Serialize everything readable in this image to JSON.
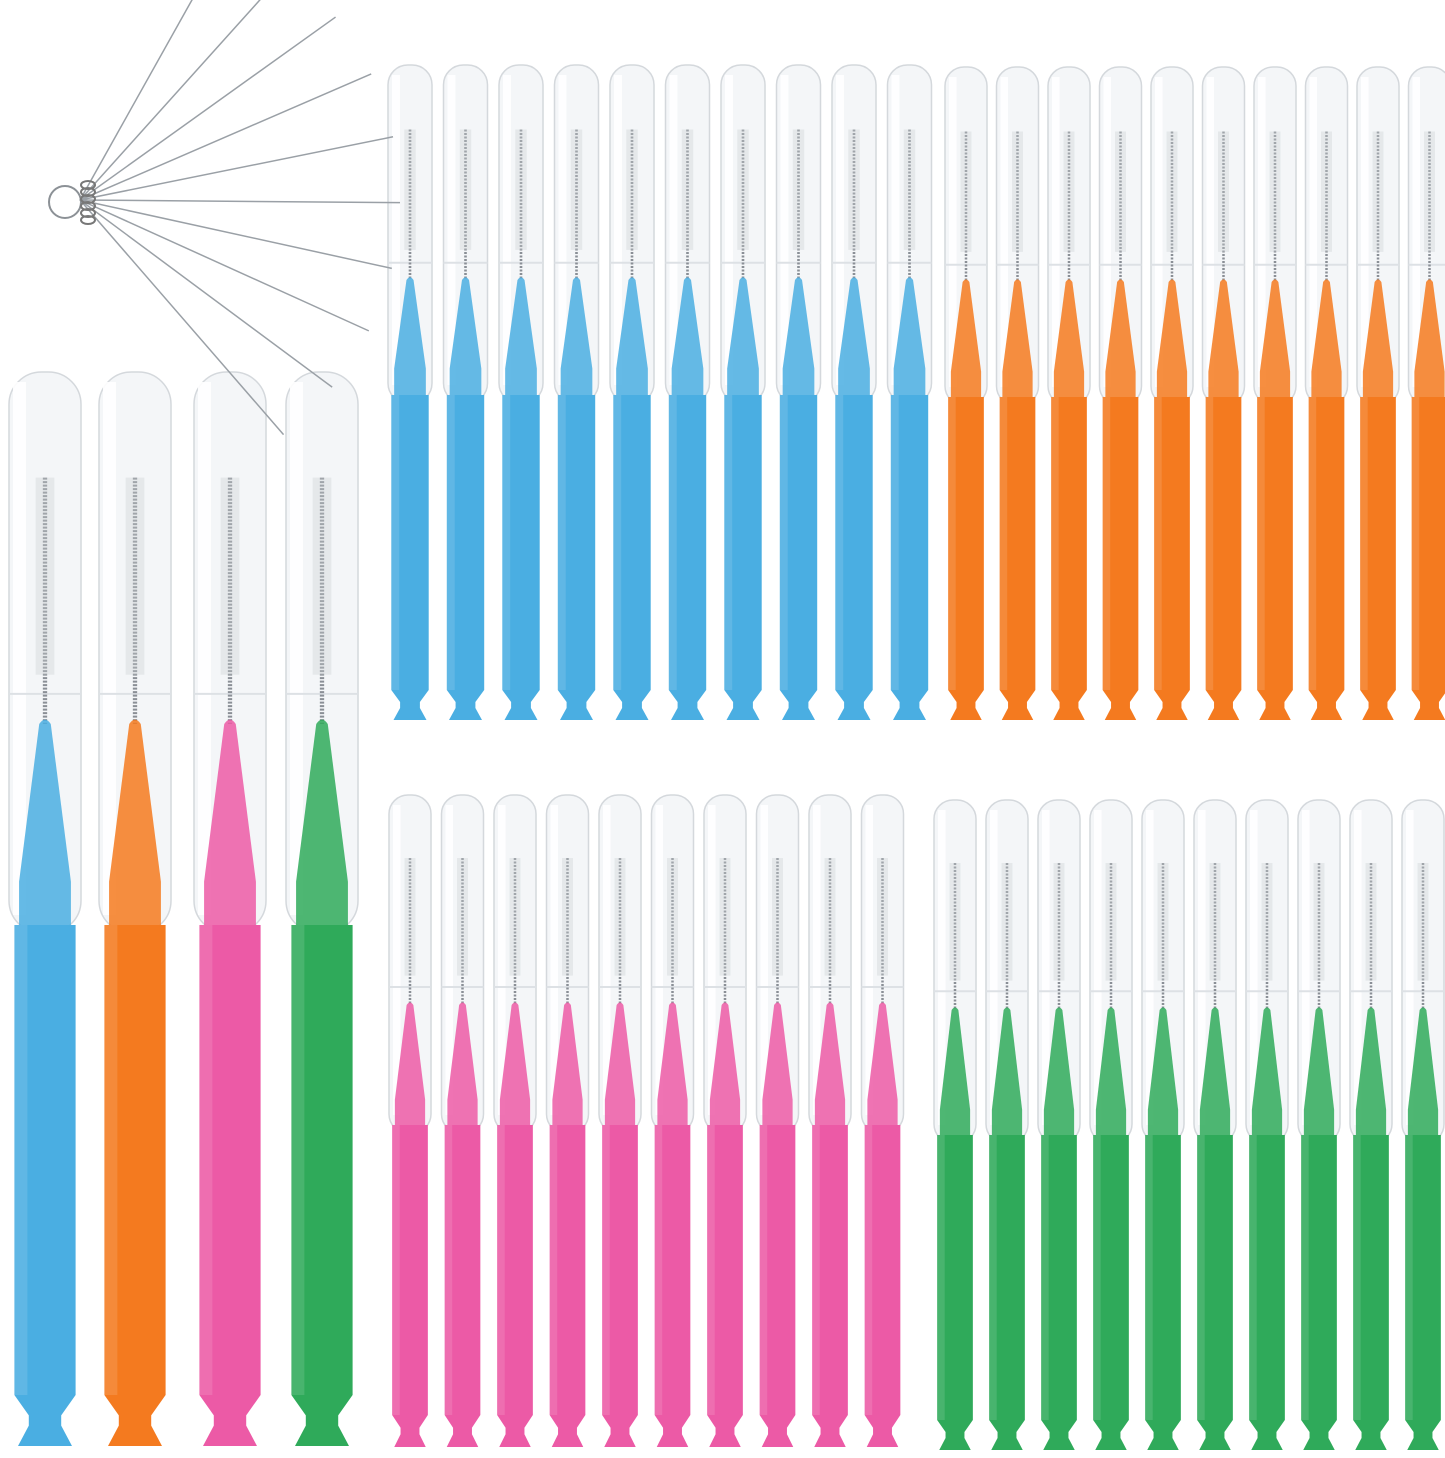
{
  "colors": {
    "blue": "#4aaee2",
    "orange": "#f47a1f",
    "pink": "#ec5aa6",
    "green": "#2faa5a",
    "cap": "#f4f6f8",
    "wire": "#8a8f96",
    "background": "#ffffff"
  },
  "groups": [
    {
      "name": "blue-brush-row",
      "color": "blue",
      "count": 10
    },
    {
      "name": "orange-brush-row",
      "color": "orange",
      "count": 10
    },
    {
      "name": "pink-brush-row",
      "color": "pink",
      "count": 10
    },
    {
      "name": "green-brush-row",
      "color": "green",
      "count": 10
    },
    {
      "name": "large-brushes",
      "colors": [
        "blue",
        "orange",
        "pink",
        "green"
      ],
      "count": 4
    }
  ],
  "cleaning_needles": {
    "count": 10,
    "icon": "needle-set"
  }
}
